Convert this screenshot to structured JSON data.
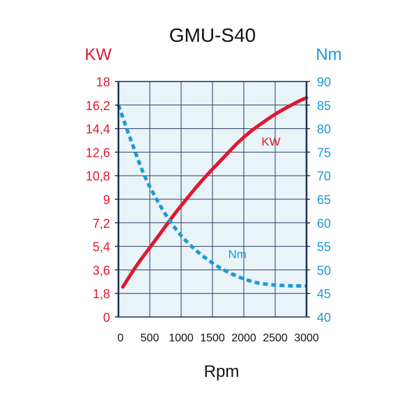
{
  "chart_data": {
    "type": "line",
    "title": "GMU-S40",
    "xlabel": "Rpm",
    "x_ticks": [
      "0",
      "500",
      "1000",
      "1500",
      "2000",
      "2500",
      "3000"
    ],
    "xlim": [
      0,
      3000
    ],
    "y_left": {
      "label": "KW",
      "ticks": [
        "0",
        "1,8",
        "3,6",
        "5,4",
        "7,2",
        "9",
        "10,8",
        "12,6",
        "14,4",
        "16,2",
        "18"
      ],
      "lim": [
        0,
        18
      ],
      "color": "#e0182d"
    },
    "y_right": {
      "label": "Nm",
      "ticks": [
        "40",
        "45",
        "50",
        "55",
        "60",
        "65",
        "70",
        "75",
        "80",
        "85",
        "90"
      ],
      "lim": [
        40,
        90
      ],
      "color": "#1a9ad6"
    },
    "grid": true,
    "plot_background": "#e8f4f8",
    "series": [
      {
        "name": "KW",
        "axis": "left",
        "style": "solid",
        "color": "#e0182d",
        "x": [
          70,
          300,
          500,
          700,
          900,
          1100,
          1300,
          1500,
          1700,
          1900,
          2100,
          2300,
          2500,
          2700,
          2900,
          3000
        ],
        "values": [
          2.3,
          4.0,
          5.3,
          6.6,
          7.9,
          9.1,
          10.25,
          11.3,
          12.3,
          13.3,
          14.15,
          14.85,
          15.5,
          16.05,
          16.55,
          16.75
        ]
      },
      {
        "name": "Nm",
        "axis": "right",
        "style": "dashed",
        "color": "#1a9ad6",
        "x": [
          0,
          200,
          400,
          600,
          800,
          1000,
          1200,
          1400,
          1600,
          1800,
          2000,
          2200,
          2400,
          2600,
          2800,
          3000
        ],
        "values": [
          85.0,
          77.5,
          70.5,
          65.2,
          60.8,
          57.3,
          54.6,
          52.4,
          50.6,
          49.2,
          48.1,
          47.3,
          46.9,
          46.7,
          46.6,
          46.6
        ]
      }
    ],
    "annotations": [
      {
        "text": "KW",
        "x": 2280,
        "y": 13.1,
        "axis": "left",
        "color": "#e0182d"
      },
      {
        "text": "Nm",
        "x": 1750,
        "y": 52.5,
        "axis": "right",
        "color": "#1a9ad6"
      }
    ]
  }
}
